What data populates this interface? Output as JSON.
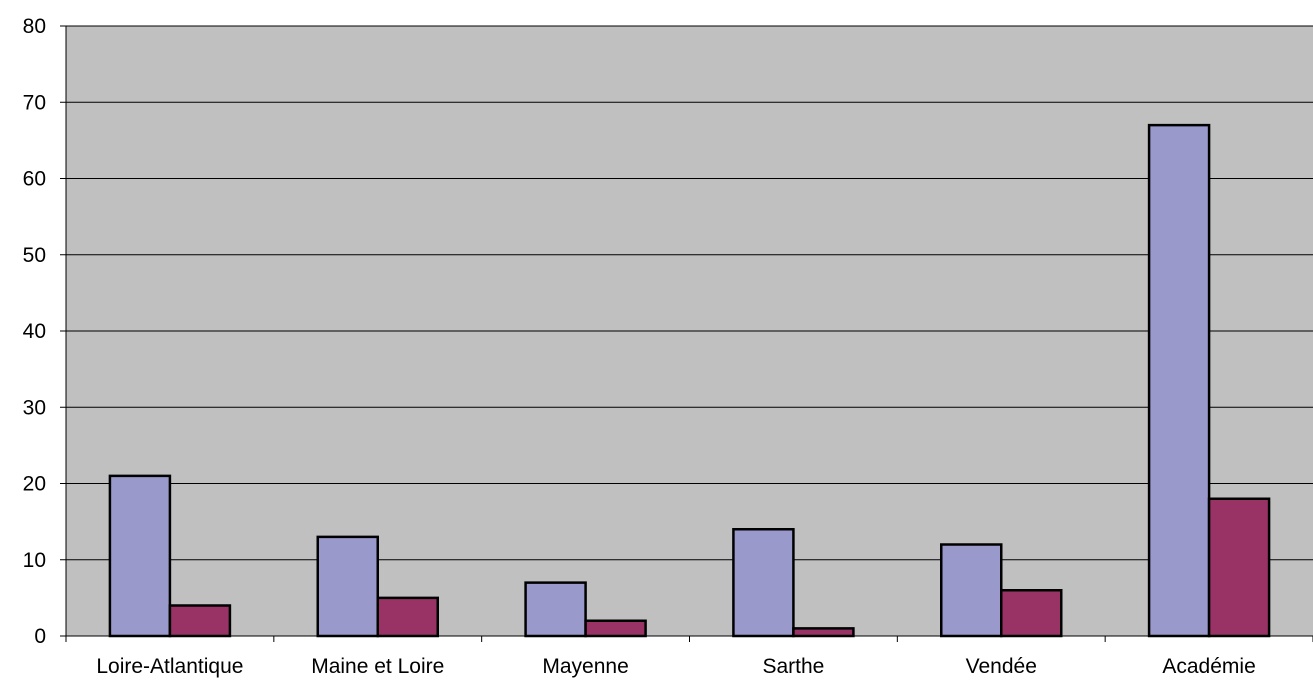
{
  "chart_data": {
    "type": "bar",
    "categories": [
      "Loire-Atlantique",
      "Maine et Loire",
      "Mayenne",
      "Sarthe",
      "Vendée",
      "Académie"
    ],
    "series": [
      {
        "values": [
          21,
          13,
          7,
          14,
          12,
          67
        ],
        "color": "#9999CC"
      },
      {
        "values": [
          4,
          5,
          2,
          1,
          6,
          18
        ],
        "color": "#993366"
      }
    ],
    "title": "",
    "xlabel": "",
    "ylabel": "",
    "ylim": [
      0,
      80
    ],
    "yticks": [
      0,
      10,
      20,
      30,
      40,
      50,
      60,
      70,
      80
    ],
    "grid": true,
    "legend": "none",
    "plot_background": "#C0C0C0"
  }
}
